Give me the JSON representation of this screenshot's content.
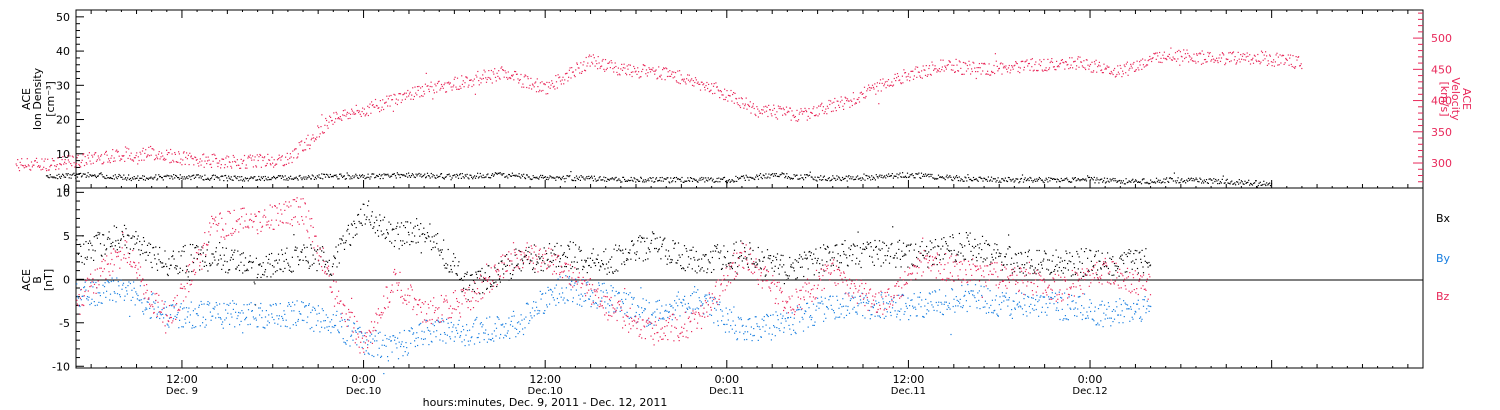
{
  "colors": {
    "black": "#000000",
    "pink": "#e8285a",
    "blue": "#1a7fe0"
  },
  "chart_data": [
    {
      "type": "scatter",
      "panel": "top",
      "ylabel_left": [
        "ACE",
        "Ion Density",
        "[cm⁻³]"
      ],
      "ylabel_right": [
        "ACE",
        "Velocity",
        "[km/s]"
      ],
      "ylim_left": [
        0,
        52
      ],
      "yticks_left": [
        "0",
        "10",
        "20",
        "30",
        "40",
        "50"
      ],
      "ylim_right": [
        260,
        545
      ],
      "yticks_right": [
        "300",
        "350",
        "400",
        "450",
        "500"
      ],
      "series": [
        {
          "color": "black",
          "axis": "left",
          "x": [
            3,
            6,
            9,
            12,
            15,
            18,
            21,
            24,
            27,
            30,
            33,
            36,
            39,
            42,
            45,
            48,
            51,
            54,
            57,
            60,
            63,
            66,
            69,
            72,
            75,
            78,
            81,
            84
          ],
          "y": [
            3.5,
            4,
            3,
            3.5,
            3,
            3,
            3.5,
            3.5,
            4,
            3.5,
            4,
            3,
            3,
            2.5,
            2.5,
            2.5,
            4,
            3,
            3,
            4,
            3,
            2.5,
            2.5,
            2.5,
            2,
            2.5,
            2,
            1.5
          ]
        },
        {
          "color": "pink",
          "axis": "right",
          "x": [
            1,
            4,
            7,
            10,
            13,
            16,
            19,
            22,
            24,
            27,
            30,
            33,
            36,
            39,
            41,
            44,
            47,
            50,
            53,
            56,
            59,
            62,
            65,
            68,
            71,
            74,
            77,
            80,
            83,
            86
          ],
          "y": [
            298,
            300,
            312,
            317,
            305,
            303,
            307,
            375,
            385,
            412,
            428,
            445,
            420,
            465,
            450,
            445,
            422,
            385,
            378,
            400,
            435,
            455,
            452,
            457,
            462,
            448,
            475,
            468,
            470,
            462
          ]
        }
      ]
    },
    {
      "type": "scatter",
      "panel": "bottom",
      "ylabel": [
        "ACE",
        "B",
        "[nT]"
      ],
      "ylim": [
        -10.2,
        10.5
      ],
      "yticks": [
        "-10",
        "-5",
        "0",
        "5",
        "10"
      ],
      "xlim": [
        5,
        94
      ],
      "xticks": [
        {
          "x": 12,
          "time": "12:00",
          "date": "Dec. 9"
        },
        {
          "x": 24,
          "time": "0:00",
          "date": "Dec.10"
        },
        {
          "x": 36,
          "time": "12:00",
          "date": "Dec.10"
        },
        {
          "x": 48,
          "time": "0:00",
          "date": "Dec.11"
        },
        {
          "x": 60,
          "time": "12:00",
          "date": "Dec.11"
        },
        {
          "x": 72,
          "time": "0:00",
          "date": "Dec.12"
        }
      ],
      "xlabel": "hours:minutes, Dec. 9, 2011 - Dec. 12, 2011",
      "legend": [
        "Bx",
        "By",
        "Bz"
      ],
      "series": [
        {
          "name": "Bx",
          "color": "black",
          "x": [
            5,
            8,
            11,
            14,
            17,
            20,
            22,
            24,
            26,
            28,
            31,
            34,
            37,
            40,
            43,
            46,
            49,
            52,
            55,
            58,
            61,
            64,
            67,
            70,
            73,
            76
          ],
          "y": [
            3,
            5,
            2,
            3,
            1,
            3,
            2,
            8,
            5,
            6,
            -1,
            2,
            3,
            2,
            4,
            2,
            3,
            1,
            3,
            3,
            3,
            4,
            2,
            2,
            2,
            2
          ]
        },
        {
          "name": "By",
          "color": "blue",
          "x": [
            5,
            8,
            11,
            14,
            17,
            20,
            22,
            24,
            26,
            28,
            31,
            34,
            37,
            40,
            43,
            46,
            49,
            52,
            55,
            58,
            61,
            64,
            67,
            70,
            73,
            76
          ],
          "y": [
            -2,
            -1,
            -4,
            -4,
            -4,
            -4,
            -5,
            -7,
            -8,
            -6,
            -6,
            -5,
            -1,
            -2,
            -4,
            -2,
            -6,
            -5,
            -3,
            -3,
            -3,
            -2,
            -3,
            -3,
            -4,
            -3
          ]
        },
        {
          "name": "Bz",
          "color": "pink",
          "x": [
            5,
            8,
            11,
            14,
            17,
            20,
            22,
            24,
            26,
            28,
            31,
            34,
            37,
            40,
            43,
            46,
            49,
            52,
            55,
            58,
            61,
            64,
            67,
            70,
            73,
            76
          ],
          "y": [
            -3,
            4,
            -5,
            6,
            7,
            8,
            -1,
            -8,
            0,
            -4,
            -2,
            3,
            2,
            -3,
            -6,
            -5,
            3,
            -3,
            1,
            -3,
            2,
            1,
            0,
            -1,
            1,
            -1
          ]
        }
      ]
    }
  ]
}
